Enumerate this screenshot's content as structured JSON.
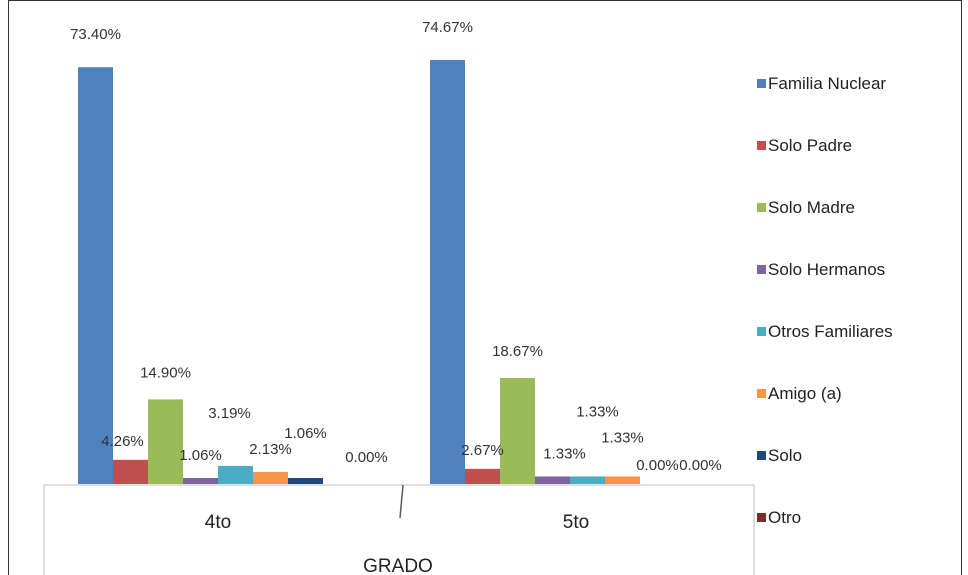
{
  "chart_data": {
    "type": "bar",
    "categories": [
      "4to",
      "5to"
    ],
    "xlabel": "GRADO",
    "ylabel": "",
    "title": "",
    "ylim": [
      0,
      80
    ],
    "grid": false,
    "legend_position": "right",
    "series": [
      {
        "name": "Familia Nuclear",
        "color": "#4F81BD",
        "values": [
          73.4,
          74.67
        ],
        "labels": [
          "73.40%",
          "74.67%"
        ]
      },
      {
        "name": "Solo Padre",
        "color": "#C0504D",
        "values": [
          4.26,
          2.67
        ],
        "labels": [
          "4.26%",
          "2.67%"
        ]
      },
      {
        "name": "Solo Madre",
        "color": "#9BBB59",
        "values": [
          14.9,
          18.67
        ],
        "labels": [
          "14.90%",
          "18.67%"
        ]
      },
      {
        "name": "Solo Hermanos",
        "color": "#8064A2",
        "values": [
          1.06,
          1.33
        ],
        "labels": [
          "1.06%",
          "1.33%"
        ]
      },
      {
        "name": "Otros Familiares",
        "color": "#4BACC6",
        "values": [
          3.19,
          1.33
        ],
        "labels": [
          "3.19%",
          "1.33%"
        ]
      },
      {
        "name": "Amigo (a)",
        "color": "#F79646",
        "values": [
          2.13,
          1.33
        ],
        "labels": [
          "2.13%",
          "1.33%"
        ]
      },
      {
        "name": "Solo",
        "color": "#1F497D",
        "values": [
          1.06,
          0.0
        ],
        "labels": [
          "1.06%",
          "0.00%"
        ]
      },
      {
        "name": "Otro",
        "color": "#7B2C2C",
        "values": [
          0.0,
          0.0
        ],
        "labels": [
          "0.00%",
          "0.00%"
        ]
      }
    ]
  }
}
